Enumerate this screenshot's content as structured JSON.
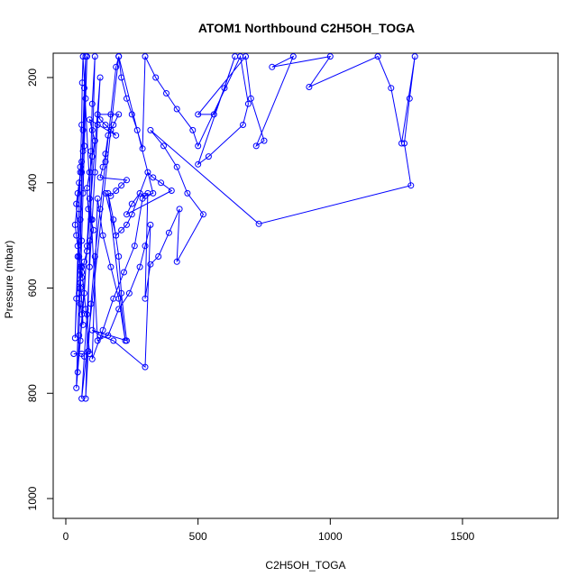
{
  "chart_data": {
    "type": "scatter",
    "title": "ATOM1 Northbound C2H5OH_TOGA",
    "xlabel": "C2H5OH_TOGA",
    "ylabel": "Pressure (mbar)",
    "xlim": [
      0,
      1860
    ],
    "ylim": [
      1040,
      160
    ],
    "y_axis_inverted": true,
    "grid": false,
    "legend": "none",
    "x_ticks": [
      0,
      500,
      1000,
      1500
    ],
    "y_ticks": [
      200,
      400,
      600,
      800,
      1000
    ],
    "colors": {
      "series": "#0000ff",
      "axes": "#000000"
    },
    "series": [
      {
        "mode": "lines+markers",
        "points": [
          [
            30,
            725
          ],
          [
            60,
            725
          ],
          [
            90,
            725
          ],
          [
            75,
            640
          ],
          [
            60,
            560
          ],
          [
            55,
            470
          ],
          [
            60,
            380
          ],
          [
            65,
            300
          ],
          [
            70,
            220
          ],
          [
            75,
            160
          ],
          [
            40,
            790
          ],
          [
            55,
            700
          ],
          [
            70,
            610
          ],
          [
            80,
            520
          ],
          [
            90,
            430
          ],
          [
            95,
            340
          ],
          [
            100,
            250
          ],
          [
            110,
            160
          ],
          [
            75,
            810
          ],
          [
            85,
            720
          ],
          [
            95,
            630
          ],
          [
            110,
            540
          ],
          [
            130,
            450
          ],
          [
            150,
            360
          ],
          [
            170,
            270
          ],
          [
            190,
            180
          ],
          [
            200,
            160
          ],
          [
            60,
            810
          ],
          [
            70,
            730
          ],
          [
            80,
            650
          ],
          [
            90,
            560
          ],
          [
            100,
            470
          ],
          [
            110,
            380
          ],
          [
            120,
            290
          ],
          [
            130,
            200
          ],
          [
            45,
            760
          ],
          [
            50,
            690
          ],
          [
            55,
            600
          ],
          [
            60,
            510
          ],
          [
            65,
            420
          ],
          [
            70,
            330
          ],
          [
            75,
            240
          ],
          [
            80,
            160
          ],
          [
            35,
            695
          ],
          [
            40,
            620
          ],
          [
            45,
            540
          ],
          [
            50,
            450
          ],
          [
            55,
            370
          ],
          [
            60,
            290
          ],
          [
            62,
            210
          ],
          [
            65,
            160
          ],
          [
            120,
            700
          ],
          [
            160,
            690
          ],
          [
            200,
            640
          ],
          [
            240,
            610
          ],
          [
            280,
            560
          ],
          [
            300,
            520
          ],
          [
            320,
            480
          ],
          [
            300,
            750
          ],
          [
            180,
            700
          ],
          [
            130,
            690
          ],
          [
            100,
            680
          ],
          [
            230,
            700
          ],
          [
            210,
            610
          ],
          [
            200,
            540
          ],
          [
            180,
            470
          ],
          [
            160,
            420
          ],
          [
            225,
            700
          ],
          [
            200,
            620
          ],
          [
            170,
            560
          ],
          [
            140,
            500
          ],
          [
            120,
            430
          ],
          [
            100,
            735
          ],
          [
            140,
            680
          ],
          [
            180,
            620
          ],
          [
            220,
            570
          ],
          [
            260,
            520
          ],
          [
            290,
            430
          ],
          [
            310,
            420
          ],
          [
            300,
            620
          ],
          [
            320,
            555
          ],
          [
            350,
            540
          ],
          [
            390,
            495
          ],
          [
            430,
            450
          ],
          [
            420,
            550
          ],
          [
            520,
            460
          ],
          [
            460,
            420
          ],
          [
            420,
            370
          ],
          [
            370,
            330
          ],
          [
            320,
            300
          ],
          [
            730,
            478
          ],
          [
            1305,
            405
          ],
          [
            1280,
            325
          ],
          [
            1300,
            240
          ],
          [
            1320,
            160
          ],
          [
            1270,
            325
          ],
          [
            1230,
            220
          ],
          [
            1180,
            160
          ],
          [
            920,
            218
          ],
          [
            1000,
            160
          ],
          [
            780,
            180
          ],
          [
            860,
            160
          ],
          [
            720,
            330
          ],
          [
            750,
            320
          ],
          [
            700,
            240
          ],
          [
            680,
            160
          ],
          [
            500,
            270
          ],
          [
            560,
            270
          ],
          [
            600,
            220
          ],
          [
            640,
            160
          ],
          [
            500,
            365
          ],
          [
            540,
            350
          ],
          [
            670,
            290
          ],
          [
            690,
            250
          ],
          [
            660,
            160
          ],
          [
            500,
            330
          ],
          [
            480,
            300
          ],
          [
            420,
            260
          ],
          [
            380,
            230
          ],
          [
            340,
            200
          ],
          [
            300,
            160
          ],
          [
            290,
            335
          ],
          [
            270,
            300
          ],
          [
            250,
            270
          ],
          [
            230,
            240
          ],
          [
            210,
            200
          ],
          [
            200,
            160
          ],
          [
            330,
            420
          ],
          [
            300,
            425
          ],
          [
            280,
            420
          ],
          [
            250,
            440
          ],
          [
            230,
            460
          ],
          [
            400,
            415
          ],
          [
            360,
            400
          ],
          [
            330,
            390
          ],
          [
            310,
            380
          ],
          [
            250,
            460
          ],
          [
            230,
            480
          ],
          [
            210,
            490
          ],
          [
            190,
            500
          ],
          [
            150,
            420
          ],
          [
            170,
            425
          ],
          [
            190,
            415
          ],
          [
            210,
            405
          ],
          [
            230,
            395
          ],
          [
            130,
            390
          ],
          [
            140,
            370
          ],
          [
            150,
            345
          ],
          [
            160,
            310
          ],
          [
            180,
            290
          ],
          [
            200,
            270
          ],
          [
            120,
            270
          ],
          [
            130,
            280
          ],
          [
            150,
            290
          ],
          [
            170,
            300
          ],
          [
            190,
            310
          ],
          [
            90,
            280
          ],
          [
            100,
            300
          ],
          [
            110,
            320
          ],
          [
            100,
            350
          ],
          [
            90,
            380
          ],
          [
            80,
            410
          ],
          [
            85,
            450
          ],
          [
            95,
            470
          ],
          [
            105,
            490
          ],
          [
            90,
            510
          ],
          [
            80,
            530
          ],
          [
            70,
            550
          ],
          [
            60,
            570
          ],
          [
            55,
            590
          ],
          [
            50,
            610
          ],
          [
            55,
            630
          ],
          [
            60,
            650
          ],
          [
            65,
            670
          ],
          [
            40,
            440
          ],
          [
            45,
            420
          ],
          [
            50,
            400
          ],
          [
            55,
            380
          ],
          [
            60,
            360
          ],
          [
            65,
            340
          ],
          [
            35,
            480
          ],
          [
            40,
            500
          ],
          [
            45,
            520
          ],
          [
            50,
            540
          ],
          [
            55,
            560
          ],
          [
            60,
            580
          ]
        ]
      }
    ]
  }
}
